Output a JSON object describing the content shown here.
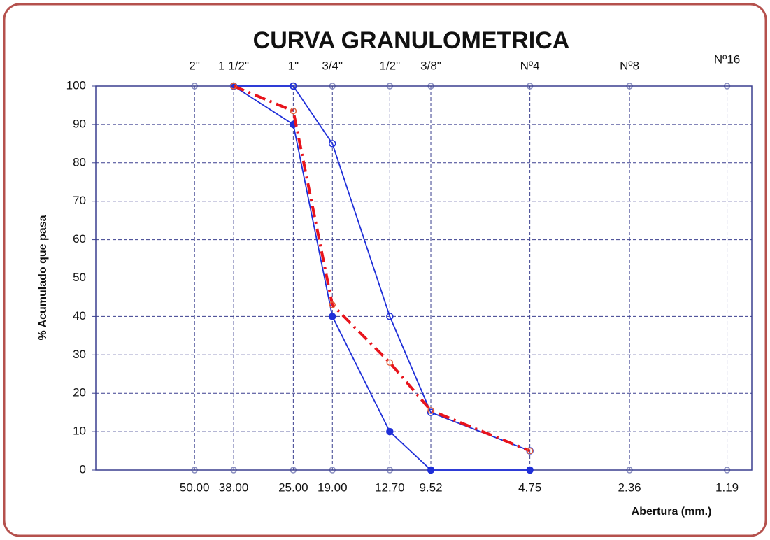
{
  "chart_data": {
    "type": "line",
    "title": "CURVA GRANULOMETRICA",
    "ylabel": "% Acumulado que pasa",
    "xlabel": "Abertura (mm.)",
    "xscale": "log",
    "xlim": [
      100,
      1
    ],
    "xticks": [
      {
        "value": 50,
        "label": "50.00"
      },
      {
        "value": 38,
        "label": "38.00"
      },
      {
        "value": 25,
        "label": "25.00"
      },
      {
        "value": 19,
        "label": "19.00"
      },
      {
        "value": 12.7,
        "label": "12.70"
      },
      {
        "value": 9.52,
        "label": "9.52"
      },
      {
        "value": 4.75,
        "label": "4.75"
      },
      {
        "value": 2.36,
        "label": "2.36"
      },
      {
        "value": 1.19,
        "label": "1.19"
      }
    ],
    "x2ticks": [
      {
        "value": 50,
        "label": "2\""
      },
      {
        "value": 38,
        "label": "1 1/2\""
      },
      {
        "value": 25,
        "label": "1\""
      },
      {
        "value": 19,
        "label": "3/4\""
      },
      {
        "value": 12.7,
        "label": "1/2\""
      },
      {
        "value": 9.52,
        "label": "3/8\""
      },
      {
        "value": 4.75,
        "label": "Nº4"
      },
      {
        "value": 2.36,
        "label": "Nº8"
      },
      {
        "value": 1.19,
        "label": "Nº16"
      }
    ],
    "ylim": [
      0,
      100
    ],
    "yticks": [
      0,
      10,
      20,
      30,
      40,
      50,
      60,
      70,
      80,
      90,
      100
    ],
    "grid": true,
    "x": [
      38,
      25,
      19,
      12.7,
      9.52,
      4.75
    ],
    "series": [
      {
        "color": "#1f2fd8",
        "marker": "open",
        "dash": "solid",
        "values": [
          100,
          100,
          85,
          40,
          15,
          5
        ]
      },
      {
        "color": "#1f2fd8",
        "marker": "filled",
        "dash": "solid",
        "values": [
          100,
          90,
          40,
          10,
          0,
          0
        ]
      },
      {
        "color": "#e8141c",
        "marker": "open",
        "dash": "dashdot",
        "values": [
          100,
          93.5,
          43,
          28,
          15.5,
          5
        ]
      }
    ]
  }
}
